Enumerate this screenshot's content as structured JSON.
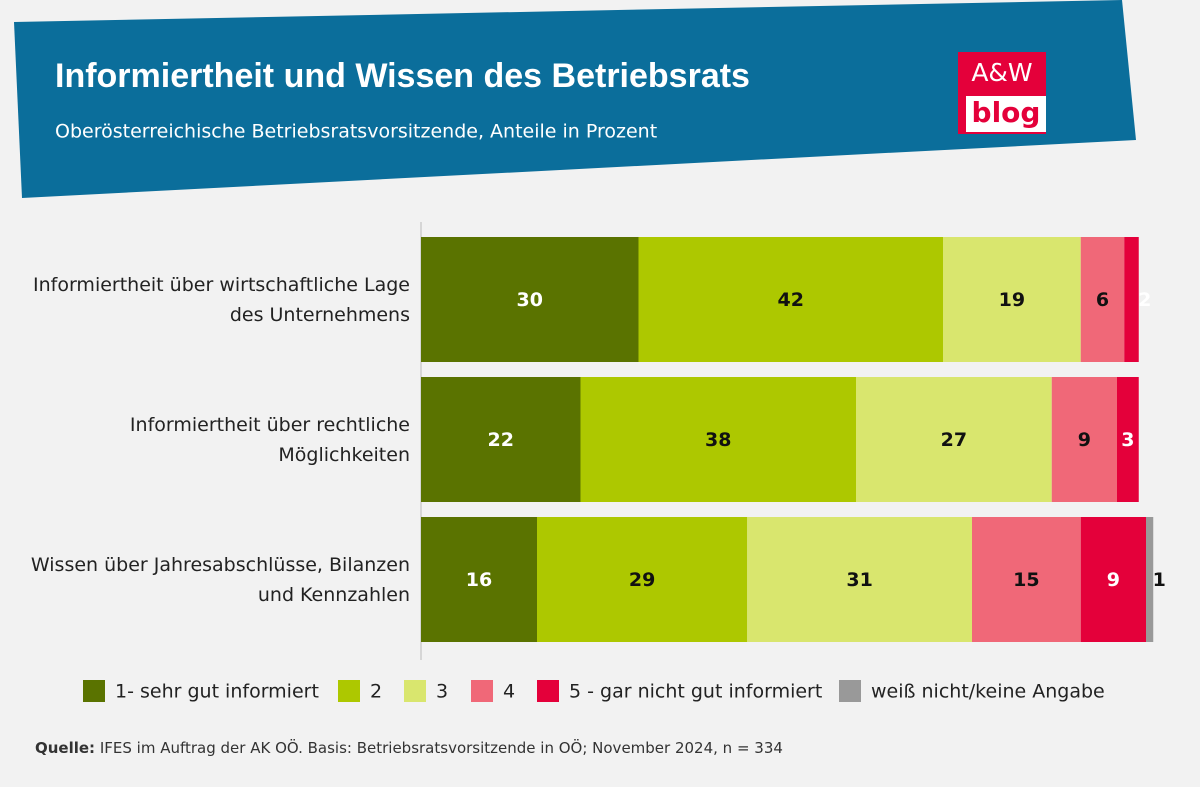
{
  "chart_data": {
    "type": "stacked-bar-horizontal",
    "title": "Informiertheit und Wissen des Betriebsrats",
    "subtitle": "Oberösterreichische Betriebsratsvorsitzende, Anteile in Prozent",
    "logo": [
      "A&W",
      "blog"
    ],
    "source_label": "Quelle:",
    "source": "IFES im Auftrag der AK OÖ. Basis: Betriebsratsvorsitzende in OÖ; November 2024, n = 334",
    "categories": [
      "Informiertheit über wirtschaftliche Lage des Unternehmens",
      "Informiertheit über rechtliche Möglichkeiten",
      "Wissen über Jahresabschlüsse, Bilanzen und Kennzahlen"
    ],
    "series": [
      {
        "name": "1- sehr gut informiert",
        "color": "#5a7300",
        "values": [
          30,
          22,
          16
        ]
      },
      {
        "name": "2",
        "color": "#adc800",
        "values": [
          42,
          38,
          29
        ]
      },
      {
        "name": "3",
        "color": "#d9e66e",
        "values": [
          19,
          27,
          31
        ]
      },
      {
        "name": "4",
        "color": "#f06878",
        "values": [
          6,
          9,
          15
        ]
      },
      {
        "name": "5 - gar nicht gut informiert",
        "color": "#e4003a",
        "values": [
          2,
          3,
          9
        ]
      },
      {
        "name": "weiß nicht/keine Angabe",
        "color": "#999999",
        "values": [
          null,
          null,
          1
        ]
      }
    ]
  }
}
